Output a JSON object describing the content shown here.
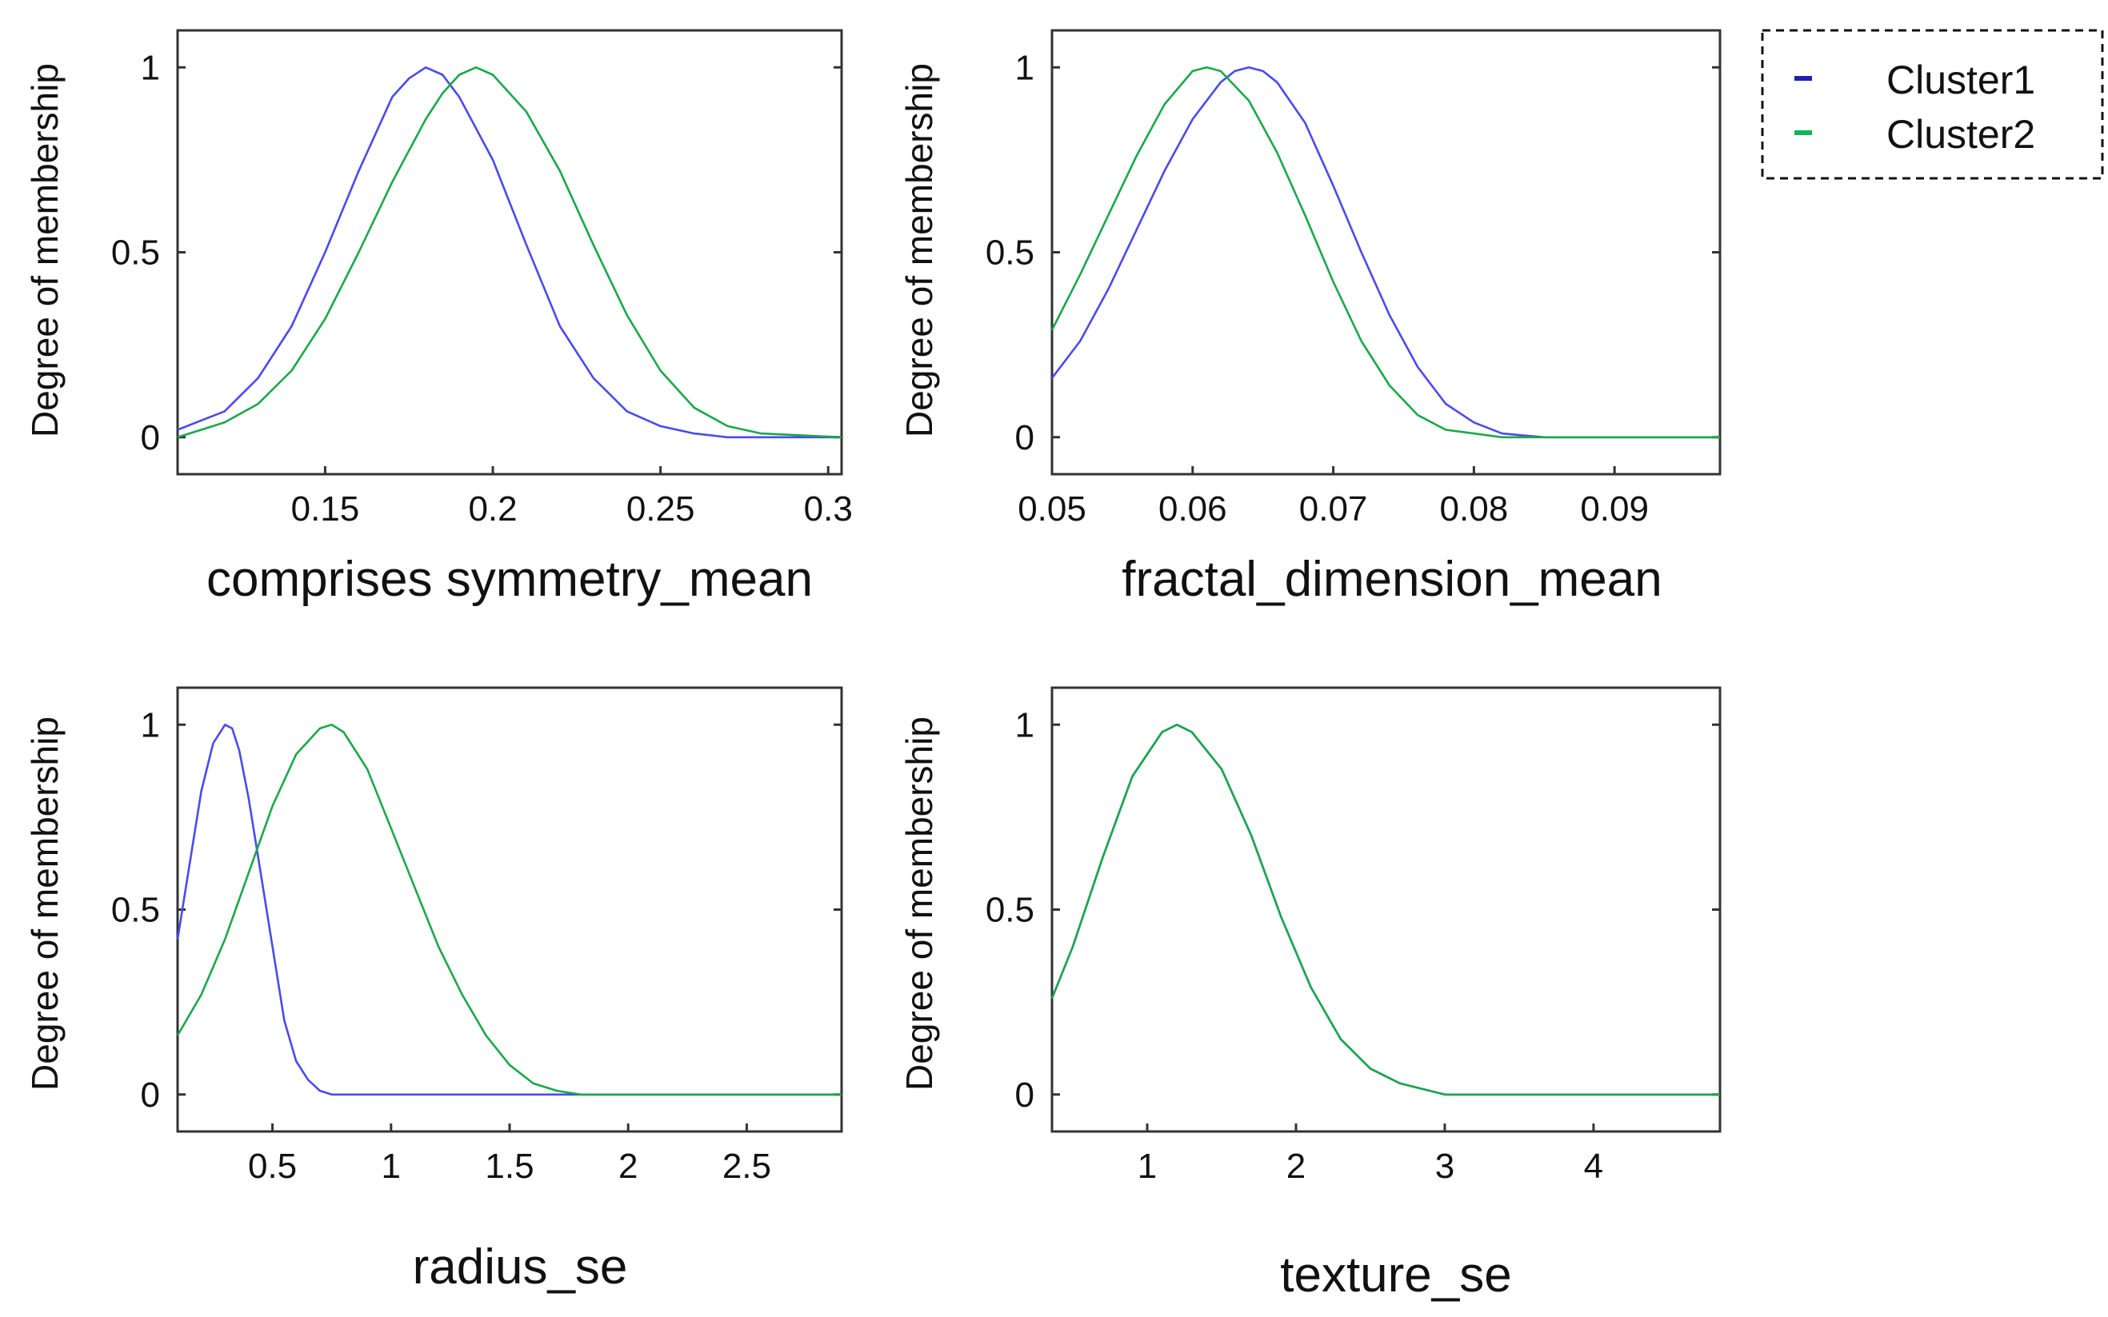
{
  "chart_data": [
    {
      "type": "line",
      "xlabel": "comprises symmetry_mean",
      "ylabel": "Degree of membership",
      "xlim": [
        0.106,
        0.304
      ],
      "ylim": [
        -0.1,
        1.1
      ],
      "xticks": [
        0.15,
        0.2,
        0.25,
        0.3
      ],
      "xtick_labels": [
        "0.15",
        "0.2",
        "0.25",
        "0.3"
      ],
      "yticks": [
        0,
        0.5,
        1
      ],
      "ytick_labels": [
        "0",
        "0.5",
        "1"
      ],
      "series": [
        {
          "name": "Cluster1",
          "color": "#4a4af0",
          "x": [
            0.106,
            0.12,
            0.13,
            0.14,
            0.15,
            0.16,
            0.17,
            0.175,
            0.18,
            0.185,
            0.19,
            0.2,
            0.21,
            0.22,
            0.23,
            0.24,
            0.25,
            0.26,
            0.27,
            0.28,
            0.304
          ],
          "values": [
            0.02,
            0.07,
            0.16,
            0.3,
            0.5,
            0.72,
            0.92,
            0.97,
            1.0,
            0.98,
            0.92,
            0.75,
            0.52,
            0.3,
            0.16,
            0.07,
            0.03,
            0.01,
            0.0,
            0.0,
            0.0
          ]
        },
        {
          "name": "Cluster2",
          "color": "#1aa84a",
          "x": [
            0.106,
            0.12,
            0.13,
            0.14,
            0.15,
            0.16,
            0.17,
            0.18,
            0.185,
            0.19,
            0.195,
            0.2,
            0.21,
            0.22,
            0.23,
            0.24,
            0.25,
            0.26,
            0.27,
            0.28,
            0.304
          ],
          "values": [
            0.0,
            0.04,
            0.09,
            0.18,
            0.32,
            0.5,
            0.69,
            0.86,
            0.93,
            0.98,
            1.0,
            0.98,
            0.88,
            0.72,
            0.52,
            0.33,
            0.18,
            0.08,
            0.03,
            0.01,
            0.0
          ]
        }
      ]
    },
    {
      "type": "line",
      "xlabel": "fractal_dimension_mean",
      "ylabel": "Degree of membership",
      "xlim": [
        0.05,
        0.0975
      ],
      "ylim": [
        -0.1,
        1.1
      ],
      "xticks": [
        0.05,
        0.06,
        0.07,
        0.08,
        0.09
      ],
      "xtick_labels": [
        "0.05",
        "0.06",
        "0.07",
        "0.08",
        "0.09"
      ],
      "yticks": [
        0,
        0.5,
        1
      ],
      "ytick_labels": [
        "0",
        "0.5",
        "1"
      ],
      "series": [
        {
          "name": "Cluster1",
          "color": "#4a4af0",
          "x": [
            0.05,
            0.052,
            0.054,
            0.056,
            0.058,
            0.06,
            0.062,
            0.063,
            0.064,
            0.065,
            0.066,
            0.068,
            0.07,
            0.072,
            0.074,
            0.076,
            0.078,
            0.08,
            0.082,
            0.085,
            0.0975
          ],
          "values": [
            0.16,
            0.26,
            0.4,
            0.56,
            0.72,
            0.86,
            0.96,
            0.99,
            1.0,
            0.99,
            0.96,
            0.85,
            0.68,
            0.5,
            0.33,
            0.19,
            0.09,
            0.04,
            0.01,
            0.0,
            0.0
          ]
        },
        {
          "name": "Cluster2",
          "color": "#1aa84a",
          "x": [
            0.05,
            0.052,
            0.054,
            0.056,
            0.058,
            0.06,
            0.061,
            0.062,
            0.064,
            0.066,
            0.068,
            0.07,
            0.072,
            0.074,
            0.076,
            0.078,
            0.08,
            0.082,
            0.085,
            0.0975
          ],
          "values": [
            0.29,
            0.44,
            0.6,
            0.76,
            0.9,
            0.99,
            1.0,
            0.99,
            0.91,
            0.77,
            0.6,
            0.42,
            0.26,
            0.14,
            0.06,
            0.02,
            0.01,
            0.0,
            0.0,
            0.0
          ]
        }
      ]
    },
    {
      "type": "line",
      "xlabel": "radius_se",
      "ylabel": "Degree of membership",
      "xlim": [
        0.1,
        2.9
      ],
      "ylim": [
        -0.1,
        1.1
      ],
      "xticks": [
        0.5,
        1,
        1.5,
        2,
        2.5
      ],
      "xtick_labels": [
        "0.5",
        "1",
        "1.5",
        "2",
        "2.5"
      ],
      "yticks": [
        0,
        0.5,
        1
      ],
      "ytick_labels": [
        "0",
        "0.5",
        "1"
      ],
      "series": [
        {
          "name": "Cluster1",
          "color": "#4a4af0",
          "x": [
            0.1,
            0.15,
            0.2,
            0.25,
            0.3,
            0.33,
            0.36,
            0.4,
            0.45,
            0.5,
            0.55,
            0.6,
            0.65,
            0.7,
            0.75,
            0.8,
            1.0,
            1.5,
            2.9
          ],
          "values": [
            0.42,
            0.62,
            0.82,
            0.95,
            1.0,
            0.99,
            0.93,
            0.8,
            0.6,
            0.4,
            0.2,
            0.09,
            0.04,
            0.01,
            0.0,
            0.0,
            0.0,
            0.0,
            0.0
          ]
        },
        {
          "name": "Cluster2",
          "color": "#1aa84a",
          "x": [
            0.1,
            0.2,
            0.3,
            0.4,
            0.5,
            0.6,
            0.7,
            0.75,
            0.8,
            0.9,
            1.0,
            1.1,
            1.2,
            1.3,
            1.4,
            1.5,
            1.6,
            1.7,
            1.8,
            2.0,
            2.9
          ],
          "values": [
            0.16,
            0.27,
            0.42,
            0.6,
            0.78,
            0.92,
            0.99,
            1.0,
            0.98,
            0.88,
            0.72,
            0.56,
            0.4,
            0.27,
            0.16,
            0.08,
            0.03,
            0.01,
            0.0,
            0.0,
            0.0
          ]
        }
      ]
    },
    {
      "type": "line",
      "xlabel": "texture_se",
      "ylabel": "Degree of membership",
      "xlim": [
        0.36,
        4.85
      ],
      "ylim": [
        -0.1,
        1.1
      ],
      "xticks": [
        1,
        2,
        3,
        4
      ],
      "xtick_labels": [
        "1",
        "2",
        "3",
        "4"
      ],
      "yticks": [
        0,
        0.5,
        1
      ],
      "ytick_labels": [
        "0",
        "0.5",
        "1"
      ],
      "series": [
        {
          "name": "Cluster1",
          "color": "#4a4af0",
          "x": [
            0.36,
            0.5,
            0.7,
            0.9,
            1.1,
            1.2,
            1.3,
            1.5,
            1.7,
            1.9,
            2.1,
            2.3,
            2.5,
            2.7,
            3.0,
            3.5,
            4.85
          ],
          "values": [
            0.26,
            0.4,
            0.64,
            0.86,
            0.98,
            1.0,
            0.98,
            0.88,
            0.7,
            0.48,
            0.29,
            0.15,
            0.07,
            0.03,
            0.0,
            0.0,
            0.0
          ]
        },
        {
          "name": "Cluster2",
          "color": "#1aa84a",
          "x": [
            0.36,
            0.5,
            0.7,
            0.9,
            1.1,
            1.2,
            1.3,
            1.5,
            1.7,
            1.9,
            2.1,
            2.3,
            2.5,
            2.7,
            3.0,
            3.5,
            4.85
          ],
          "values": [
            0.26,
            0.4,
            0.64,
            0.86,
            0.98,
            1.0,
            0.98,
            0.88,
            0.7,
            0.48,
            0.29,
            0.15,
            0.07,
            0.03,
            0.0,
            0.0,
            0.0
          ]
        }
      ]
    }
  ],
  "legend": {
    "placement": "top-right",
    "items": [
      {
        "label": "Cluster1",
        "color": "#1f1fb4"
      },
      {
        "label": "Cluster2",
        "color": "#0fb35a"
      }
    ]
  }
}
